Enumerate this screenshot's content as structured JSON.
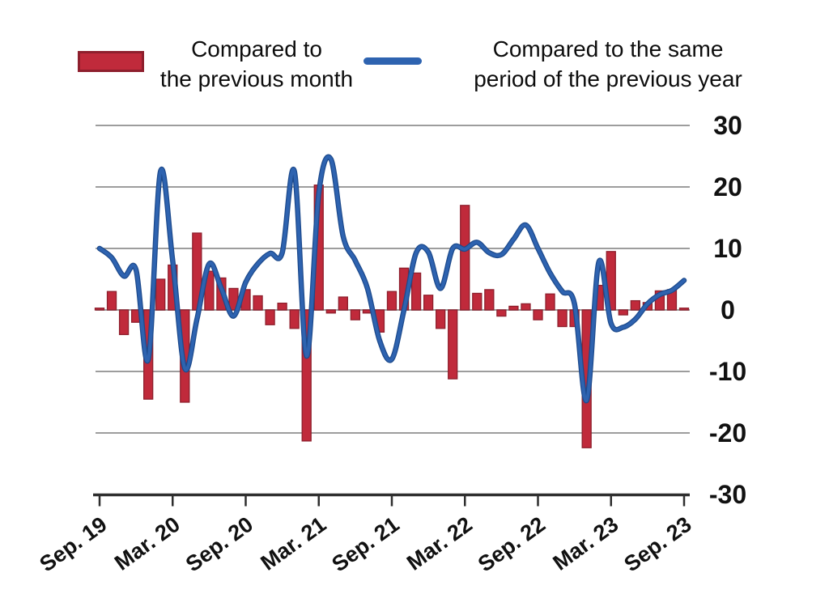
{
  "legend": {
    "bar": {
      "line1": "Compared to",
      "line2": "the previous month"
    },
    "line": {
      "line1": "Compared to the same",
      "line2": "period of the previous year"
    }
  },
  "colors": {
    "bar": "#c02a3b",
    "bar_border": "#8e1f2d",
    "line": "#2e63b0",
    "line_edge": "#1d4a8c",
    "grid": "#9d9d9d",
    "axis": "#2e2e2e",
    "text": "#111111"
  },
  "chart_data": {
    "type": "combo",
    "title": "",
    "xlabel": "",
    "ylabel": "",
    "grid": true,
    "legend_position": "top",
    "ylim": [
      -30,
      30
    ],
    "yticks": [
      30,
      20,
      10,
      0,
      -10,
      -20,
      -30
    ],
    "xtick_labels": [
      "Sep. 19",
      "Mar. 20",
      "Sep. 20",
      "Mar. 21",
      "Sep. 21",
      "Mar. 22",
      "Sep. 22",
      "Mar. 23",
      "Sep. 23"
    ],
    "xtick_indices": [
      0,
      6,
      12,
      18,
      24,
      30,
      36,
      42,
      48
    ],
    "x": [
      "Sep 2019",
      "Oct 2019",
      "Nov 2019",
      "Dec 2019",
      "Jan 2020",
      "Feb 2020",
      "Mar 2020",
      "Apr 2020",
      "May 2020",
      "Jun 2020",
      "Jul 2020",
      "Aug 2020",
      "Sep 2020",
      "Oct 2020",
      "Nov 2020",
      "Dec 2020",
      "Jan 2021",
      "Feb 2021",
      "Mar 2021",
      "Apr 2021",
      "May 2021",
      "Jun 2021",
      "Jul 2021",
      "Aug 2021",
      "Sep 2021",
      "Oct 2021",
      "Nov 2021",
      "Dec 2021",
      "Jan 2022",
      "Feb 2022",
      "Mar 2022",
      "Apr 2022",
      "May 2022",
      "Jun 2022",
      "Jul 2022",
      "Aug 2022",
      "Sep 2022",
      "Oct 2022",
      "Nov 2022",
      "Dec 2022",
      "Jan 2023",
      "Feb 2023",
      "Mar 2023",
      "Apr 2023",
      "May 2023",
      "Jun 2023",
      "Jul 2023",
      "Aug 2023",
      "Sep 2023"
    ],
    "series": [
      {
        "name": "Compared to the previous month",
        "type": "bar",
        "color": "#c02a3b",
        "values": [
          0.3,
          3,
          -4,
          -2,
          -14.5,
          5,
          7.3,
          -15,
          12.5,
          6.3,
          5.2,
          3.5,
          3.3,
          2.3,
          -2.4,
          1.1,
          -3,
          -21.3,
          20.3,
          -0.5,
          2.1,
          -1.6,
          -0.5,
          -3.6,
          3,
          6.8,
          6,
          2.4,
          -3,
          -11.2,
          17,
          2.7,
          3.3,
          -1,
          0.6,
          1,
          -1.6,
          2.6,
          -2.7,
          -2.7,
          -22.4,
          4,
          9.5,
          -0.8,
          1.5,
          1.2,
          3.1,
          3.3,
          0.3
        ]
      },
      {
        "name": "Compared to the same period of the previous year",
        "type": "line",
        "color": "#2e63b0",
        "values": [
          10,
          8.5,
          5.5,
          6.5,
          -8,
          22.5,
          8,
          -9.5,
          -1.5,
          7.5,
          3.5,
          -1,
          4.5,
          7.5,
          9.2,
          9.3,
          22.5,
          -7.5,
          19,
          24.5,
          12,
          8,
          3.5,
          -5,
          -8,
          0,
          9.3,
          9.4,
          3.5,
          10,
          9.9,
          11,
          9.3,
          9,
          11.5,
          13.8,
          10,
          6,
          3,
          1,
          -14.7,
          7.8,
          -2.2,
          -2.8,
          -1.5,
          1,
          2.5,
          3.2,
          4.8
        ]
      }
    ]
  }
}
